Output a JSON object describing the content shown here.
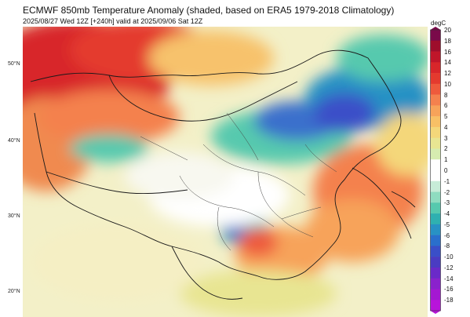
{
  "header": {
    "title": "ECMWF 850mb Temperature Anomaly (shaded, based on ERA5 1979-2018 Climatology)",
    "subtitle": "2025/08/27 Wed 12Z [+240h] valid at 2025/09/06 Sat 12Z"
  },
  "lat_labels": [
    "50°N",
    "40°N",
    "30°N",
    "20°N"
  ],
  "colorbar": {
    "unit": "degC",
    "labels": [
      "20",
      "18",
      "16",
      "14",
      "12",
      "10",
      "8",
      "6",
      "5",
      "4",
      "3",
      "2",
      "1",
      "0",
      "-1",
      "-2",
      "-3",
      "-4",
      "-5",
      "-6",
      "-8",
      "-10",
      "-12",
      "-14",
      "-16",
      "-18"
    ],
    "colors": [
      "#7a0a4a",
      "#9e0e2c",
      "#c0162a",
      "#d8262a",
      "#e43a2e",
      "#ee5a3c",
      "#f4814e",
      "#f7a35a",
      "#f8c066",
      "#f4d77a",
      "#e8e592",
      "#d6ecb0",
      "#ffffff",
      "#ffffff",
      "#c7ecd8",
      "#8fdcc0",
      "#56c9ae",
      "#2fb0b0",
      "#2891c4",
      "#2a6fcc",
      "#3a4fc8",
      "#4a3cc2",
      "#6a2ac8",
      "#8a22cc",
      "#a418d2",
      "#b814da"
    ]
  }
}
